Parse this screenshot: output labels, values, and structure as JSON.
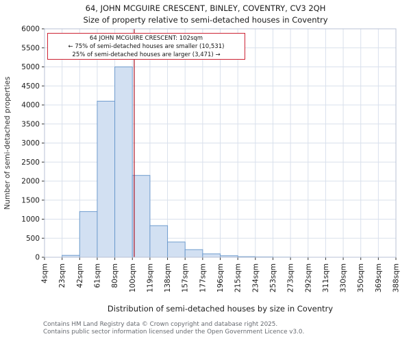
{
  "chart_data": {
    "type": "bar",
    "title": "64, JOHN MCGUIRE CRESCENT, BINLEY, COVENTRY, CV3 2QH",
    "subtitle": "Size of property relative to semi-detached houses in Coventry",
    "xlabel": "Distribution of semi-detached houses by size in Coventry",
    "ylabel": "Number of semi-detached properties",
    "categories": [
      "4sqm",
      "23sqm",
      "42sqm",
      "61sqm",
      "80sqm",
      "100sqm",
      "119sqm",
      "138sqm",
      "157sqm",
      "177sqm",
      "196sqm",
      "215sqm",
      "234sqm",
      "253sqm",
      "273sqm",
      "292sqm",
      "311sqm",
      "330sqm",
      "350sqm",
      "369sqm",
      "388sqm"
    ],
    "values": [
      0,
      50,
      1200,
      4100,
      5000,
      2150,
      830,
      400,
      200,
      90,
      40,
      15,
      8,
      3,
      0,
      0,
      0,
      0,
      0,
      0
    ],
    "ylim": [
      0,
      6000
    ],
    "ytick_step": 500,
    "grid": true,
    "legend": "none",
    "colors": {
      "bar_fill": "#d2e0f2",
      "bar_stroke": "#6f9cce",
      "grid": "#d9e0ec",
      "plot_border": "#b8c2d4",
      "marker_line": "#aa1122",
      "annotation_border": "#cc2233"
    },
    "marker": {
      "value_label": "102sqm",
      "bin_index": 5,
      "bin_fraction": 0.105
    },
    "annotation": {
      "line1": "64 JOHN MCGUIRE CRESCENT: 102sqm",
      "line2": "← 75% of semi-detached houses are smaller (10,531)",
      "line3": "25% of semi-detached houses are larger (3,471) →"
    }
  },
  "footer": {
    "line1": "Contains HM Land Registry data © Crown copyright and database right 2025.",
    "line2": "Contains public sector information licensed under the Open Government Licence v3.0."
  }
}
